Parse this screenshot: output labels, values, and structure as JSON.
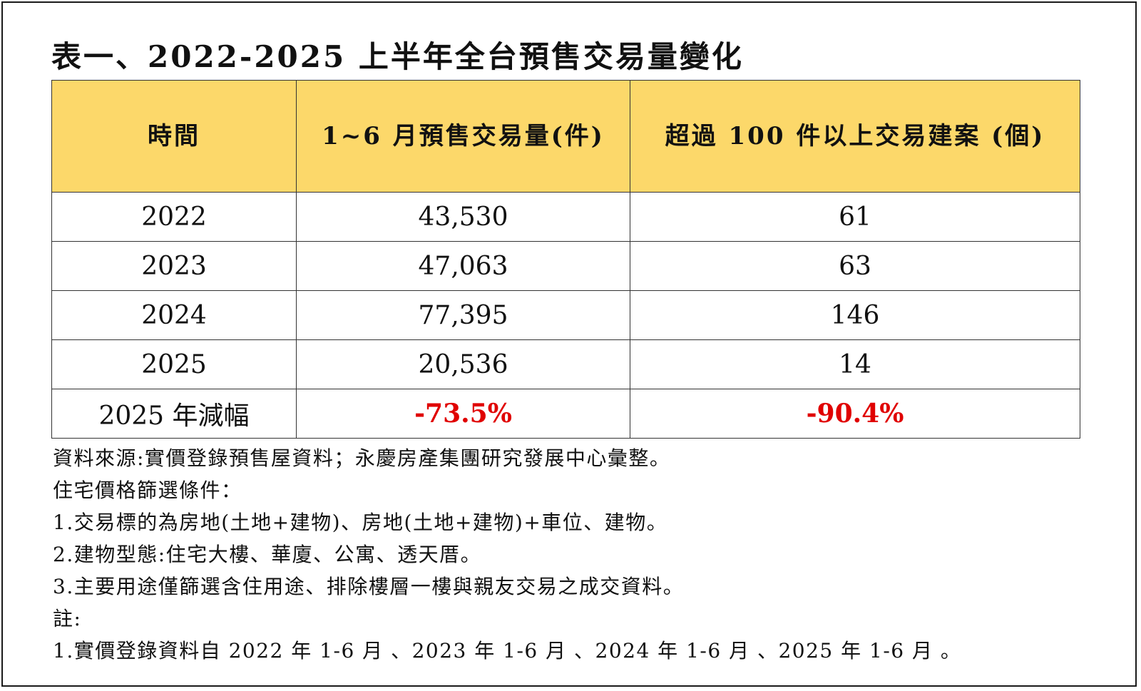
{
  "title": "表一、2022-2025 上半年全台預售交易量變化",
  "table": {
    "headers": [
      "時間",
      "1~6 月預售交易量(件)",
      "超過 100 件以上交易建案 (個)"
    ],
    "rows": [
      {
        "period": "2022",
        "volume": "43,530",
        "projects": "61"
      },
      {
        "period": "2023",
        "volume": "47,063",
        "projects": "63"
      },
      {
        "period": "2024",
        "volume": "77,395",
        "projects": "146"
      },
      {
        "period": "2025",
        "volume": "20,536",
        "projects": "14"
      }
    ],
    "decline": {
      "label": "2025 年減幅",
      "volume": "-73.5%",
      "projects": "-90.4%"
    }
  },
  "notes": [
    "資料來源:實價登錄預售屋資料；永慶房產集團研究發展中心彙整。",
    "住宅價格篩選條件：",
    "1.交易標的為房地(土地+建物)、房地(土地+建物)+車位、建物。",
    "2.建物型態:住宅大樓、華廈、公寓、透天厝。",
    "3.主要用途僅篩選含住用途、排除樓層一樓與親友交易之成交資料。",
    "註:",
    "1.實價登錄資料自 2022 年 1-6 月 、2023 年 1-6 月 、2024 年 1-6 月 、2025 年 1-6 月 。"
  ],
  "colors": {
    "header_bg": "#fcd86a",
    "negative": "#e00000"
  }
}
